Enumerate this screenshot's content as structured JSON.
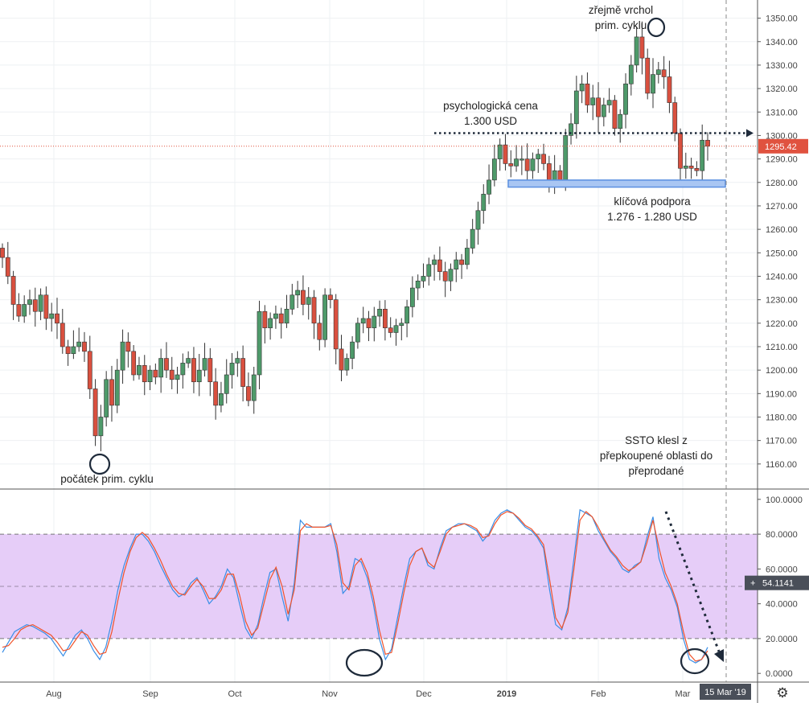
{
  "chart_data": [
    {
      "type": "candlestick",
      "ylim": [
        1150,
        1355
      ],
      "y_ticks": [
        "1160.00",
        "1170.00",
        "1180.00",
        "1190.00",
        "1200.00",
        "1210.00",
        "1220.00",
        "1230.00",
        "1240.00",
        "1250.00",
        "1260.00",
        "1270.00",
        "1280.00",
        "1290.00",
        "1300.00",
        "1310.00",
        "1320.00",
        "1330.00",
        "1340.00",
        "1350.00"
      ],
      "x_ticks": [
        "Aug",
        "Sep",
        "Oct",
        "Nov",
        "Dec",
        "2019",
        "Feb",
        "Mar"
      ],
      "grid": true,
      "last_price_label": "1295.42",
      "last_price": 1295.42,
      "closes": [
        1248,
        1240,
        1228,
        1223,
        1228,
        1230,
        1225,
        1232,
        1222,
        1224,
        1220,
        1210,
        1207,
        1210,
        1212,
        1208,
        1192,
        1172,
        1180,
        1196,
        1185,
        1200,
        1212,
        1208,
        1198,
        1202,
        1195,
        1200,
        1197,
        1205,
        1200,
        1196,
        1198,
        1203,
        1205,
        1195,
        1200,
        1205,
        1195,
        1185,
        1190,
        1198,
        1203,
        1205,
        1193,
        1187,
        1198,
        1225,
        1218,
        1222,
        1224,
        1220,
        1226,
        1232,
        1234,
        1228,
        1231,
        1220,
        1213,
        1232,
        1230,
        1209,
        1200,
        1205,
        1212,
        1220,
        1222,
        1218,
        1223,
        1226,
        1218,
        1216,
        1219,
        1220,
        1227,
        1235,
        1238,
        1240,
        1245,
        1247,
        1242,
        1238,
        1243,
        1247,
        1245,
        1252,
        1260,
        1268,
        1275,
        1281,
        1290,
        1296,
        1288,
        1287,
        1290,
        1290,
        1285,
        1290,
        1292,
        1288,
        1280,
        1285,
        1281,
        1300,
        1305,
        1319,
        1322,
        1313,
        1316,
        1308,
        1313,
        1315,
        1303,
        1309,
        1322,
        1330,
        1342,
        1333,
        1318,
        1326,
        1328,
        1325,
        1314,
        1301,
        1286,
        1287,
        1286,
        1285,
        1298,
        1295.42
      ],
      "series": [
        {
          "name": "",
          "values": [
            12,
            18,
            24,
            26,
            28,
            27,
            25,
            23,
            20,
            15,
            10,
            16,
            22,
            25,
            20,
            13,
            8,
            15,
            30,
            48,
            62,
            72,
            80,
            80,
            76,
            70,
            62,
            55,
            48,
            44,
            46,
            52,
            55,
            48,
            40,
            44,
            50,
            60,
            55,
            40,
            26,
            20,
            28,
            44,
            58,
            60,
            44,
            30,
            52,
            88,
            84,
            84,
            84,
            84,
            86,
            70,
            46,
            50,
            66,
            64,
            55,
            40,
            20,
            8,
            14,
            32,
            50,
            66,
            70,
            72,
            62,
            60,
            72,
            82,
            84,
            86,
            86,
            84,
            82,
            76,
            80,
            88,
            92,
            94,
            92,
            88,
            84,
            82,
            78,
            72,
            48,
            28,
            25,
            38,
            66,
            94,
            92,
            90,
            82,
            76,
            70,
            66,
            60,
            58,
            62,
            64,
            78,
            90,
            66,
            55,
            48,
            38,
            20,
            8,
            6,
            8,
            15
          ],
          "fragments_note": ""
        },
        {
          "name": "",
          "values": [
            15,
            16,
            20,
            25,
            27,
            28,
            26,
            24,
            22,
            18,
            13,
            14,
            19,
            24,
            22,
            16,
            11,
            12,
            24,
            42,
            58,
            70,
            78,
            81,
            78,
            72,
            65,
            57,
            50,
            46,
            45,
            50,
            54,
            50,
            43,
            43,
            48,
            57,
            57,
            45,
            30,
            22,
            26,
            40,
            54,
            61,
            50,
            34,
            48,
            82,
            86,
            84,
            84,
            84,
            85,
            74,
            52,
            48,
            62,
            66,
            58,
            44,
            25,
            11,
            12,
            28,
            46,
            62,
            70,
            72,
            64,
            61,
            70,
            80,
            84,
            85,
            86,
            85,
            83,
            78,
            79,
            86,
            91,
            93,
            92,
            89,
            85,
            83,
            79,
            74,
            54,
            32,
            26,
            35,
            60,
            88,
            93,
            90,
            84,
            77,
            71,
            67,
            62,
            59,
            61,
            64,
            75,
            88,
            72,
            58,
            50,
            40,
            24,
            11,
            7,
            8,
            13
          ]
        }
      ],
      "y2_ticks": [
        "0.0000",
        "20.0000",
        "40.0000",
        "60.0000",
        "80.0000",
        "100.0000"
      ],
      "overbought": 80,
      "oversold": 20,
      "oscillator_value_label": "54.1141",
      "date_marker": "15 Mar '19",
      "annotations": [
        {
          "lines": [
            "zřejmě vrchol",
            "prim. cyklu"
          ]
        },
        {
          "lines": [
            "psychologická cena",
            "1.300 USD"
          ]
        },
        {
          "lines": [
            "klíčová podpora",
            "1.276 - 1.280 USD"
          ]
        },
        {
          "lines": [
            "počátek prim. cyklu"
          ]
        },
        {
          "lines": [
            "SSTO klesl z",
            "přepkoupené oblasti do",
            "přeprodané"
          ]
        }
      ],
      "colors": {
        "up": "#4e9a6a",
        "down": "#d9503f",
        "fast_line": "#3a8ee6",
        "slow_line": "#f0532b",
        "band": "#e6cdf8",
        "support_zone": "#5b8fe0",
        "price_badge": "#e0523f",
        "dark_badge": "#4a4f59"
      }
    }
  ]
}
